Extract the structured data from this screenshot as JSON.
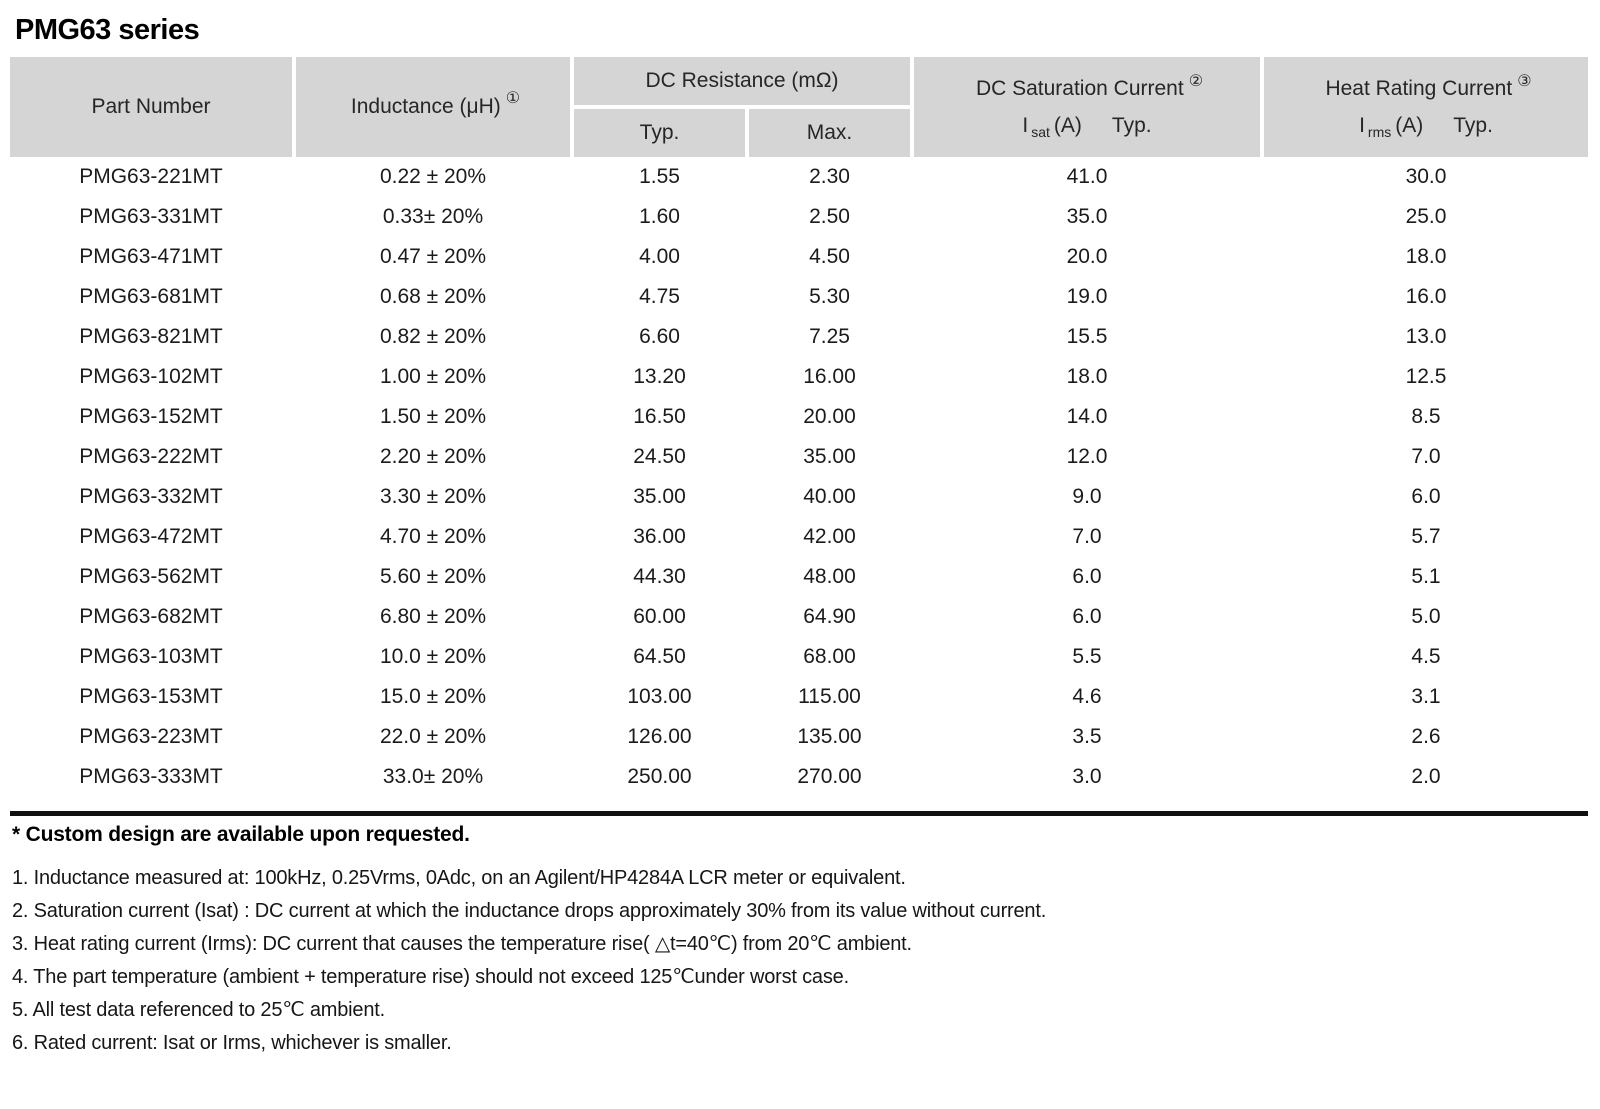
{
  "page": {
    "title": "PMG63 series"
  },
  "table": {
    "header": {
      "part_number": "Part Number",
      "inductance_label": "Inductance (μH)",
      "inductance_note_ref": "①",
      "dc_resistance_label": "DC Resistance (mΩ)",
      "typ_label": "Typ.",
      "max_label": "Max.",
      "saturation_label": "DC Saturation Current",
      "saturation_note_ref": "②",
      "saturation_symbol": "I",
      "saturation_symbol_sub": "sat",
      "saturation_unit": "(A)",
      "saturation_typ_label": "Typ.",
      "heat_label": "Heat Rating Current",
      "heat_note_ref": "③",
      "heat_symbol": "I",
      "heat_symbol_sub": "rms",
      "heat_unit": "(A)",
      "heat_typ_label": "Typ."
    },
    "rows": [
      {
        "part": "PMG63-221MT",
        "inductance": "0.22 ± 20%",
        "typ": "1.55",
        "max": "2.30",
        "isat": "41.0",
        "irms": "30.0"
      },
      {
        "part": "PMG63-331MT",
        "inductance": "0.33± 20%",
        "typ": "1.60",
        "max": "2.50",
        "isat": "35.0",
        "irms": "25.0"
      },
      {
        "part": "PMG63-471MT",
        "inductance": "0.47 ± 20%",
        "typ": "4.00",
        "max": "4.50",
        "isat": "20.0",
        "irms": "18.0"
      },
      {
        "part": "PMG63-681MT",
        "inductance": "0.68 ± 20%",
        "typ": "4.75",
        "max": "5.30",
        "isat": "19.0",
        "irms": "16.0"
      },
      {
        "part": "PMG63-821MT",
        "inductance": "0.82 ± 20%",
        "typ": "6.60",
        "max": "7.25",
        "isat": "15.5",
        "irms": "13.0"
      },
      {
        "part": "PMG63-102MT",
        "inductance": "1.00 ± 20%",
        "typ": "13.20",
        "max": "16.00",
        "isat": "18.0",
        "irms": "12.5"
      },
      {
        "part": "PMG63-152MT",
        "inductance": "1.50 ± 20%",
        "typ": "16.50",
        "max": "20.00",
        "isat": "14.0",
        "irms": "8.5"
      },
      {
        "part": "PMG63-222MT",
        "inductance": "2.20 ± 20%",
        "typ": "24.50",
        "max": "35.00",
        "isat": "12.0",
        "irms": "7.0"
      },
      {
        "part": "PMG63-332MT",
        "inductance": "3.30 ± 20%",
        "typ": "35.00",
        "max": "40.00",
        "isat": "9.0",
        "irms": "6.0"
      },
      {
        "part": "PMG63-472MT",
        "inductance": "4.70 ± 20%",
        "typ": "36.00",
        "max": "42.00",
        "isat": "7.0",
        "irms": "5.7"
      },
      {
        "part": "PMG63-562MT",
        "inductance": "5.60 ± 20%",
        "typ": "44.30",
        "max": "48.00",
        "isat": "6.0",
        "irms": "5.1"
      },
      {
        "part": "PMG63-682MT",
        "inductance": "6.80 ± 20%",
        "typ": "60.00",
        "max": "64.90",
        "isat": "6.0",
        "irms": "5.0"
      },
      {
        "part": "PMG63-103MT",
        "inductance": "10.0 ± 20%",
        "typ": "64.50",
        "max": "68.00",
        "isat": "5.5",
        "irms": "4.5"
      },
      {
        "part": "PMG63-153MT",
        "inductance": "15.0 ± 20%",
        "typ": "103.00",
        "max": "115.00",
        "isat": "4.6",
        "irms": "3.1"
      },
      {
        "part": "PMG63-223MT",
        "inductance": "22.0 ± 20%",
        "typ": "126.00",
        "max": "135.00",
        "isat": "3.5",
        "irms": "2.6"
      },
      {
        "part": "PMG63-333MT",
        "inductance": "33.0± 20%",
        "typ": "250.00",
        "max": "270.00",
        "isat": "3.0",
        "irms": "2.0"
      }
    ]
  },
  "notes": {
    "custom": "* Custom design are available upon requested.",
    "items": [
      "1. Inductance measured at: 100kHz, 0.25Vrms, 0Adc, on an Agilent/HP4284A LCR meter or equivalent.",
      "2. Saturation current (Isat) : DC current at which the inductance drops approximately 30% from its value without current.",
      "3. Heat rating current (Irms): DC current that causes the temperature rise( △t=40℃) from 20℃ ambient.",
      "4. The part temperature (ambient + temperature rise) should not exceed 125℃under worst case.",
      "5. All test data referenced to 25℃ ambient.",
      "6. Rated current: Isat or Irms, whichever is smaller."
    ]
  },
  "colors": {
    "header_bg": "#d5d5d5",
    "rule": "#101010",
    "text": "#1b1b1b"
  }
}
